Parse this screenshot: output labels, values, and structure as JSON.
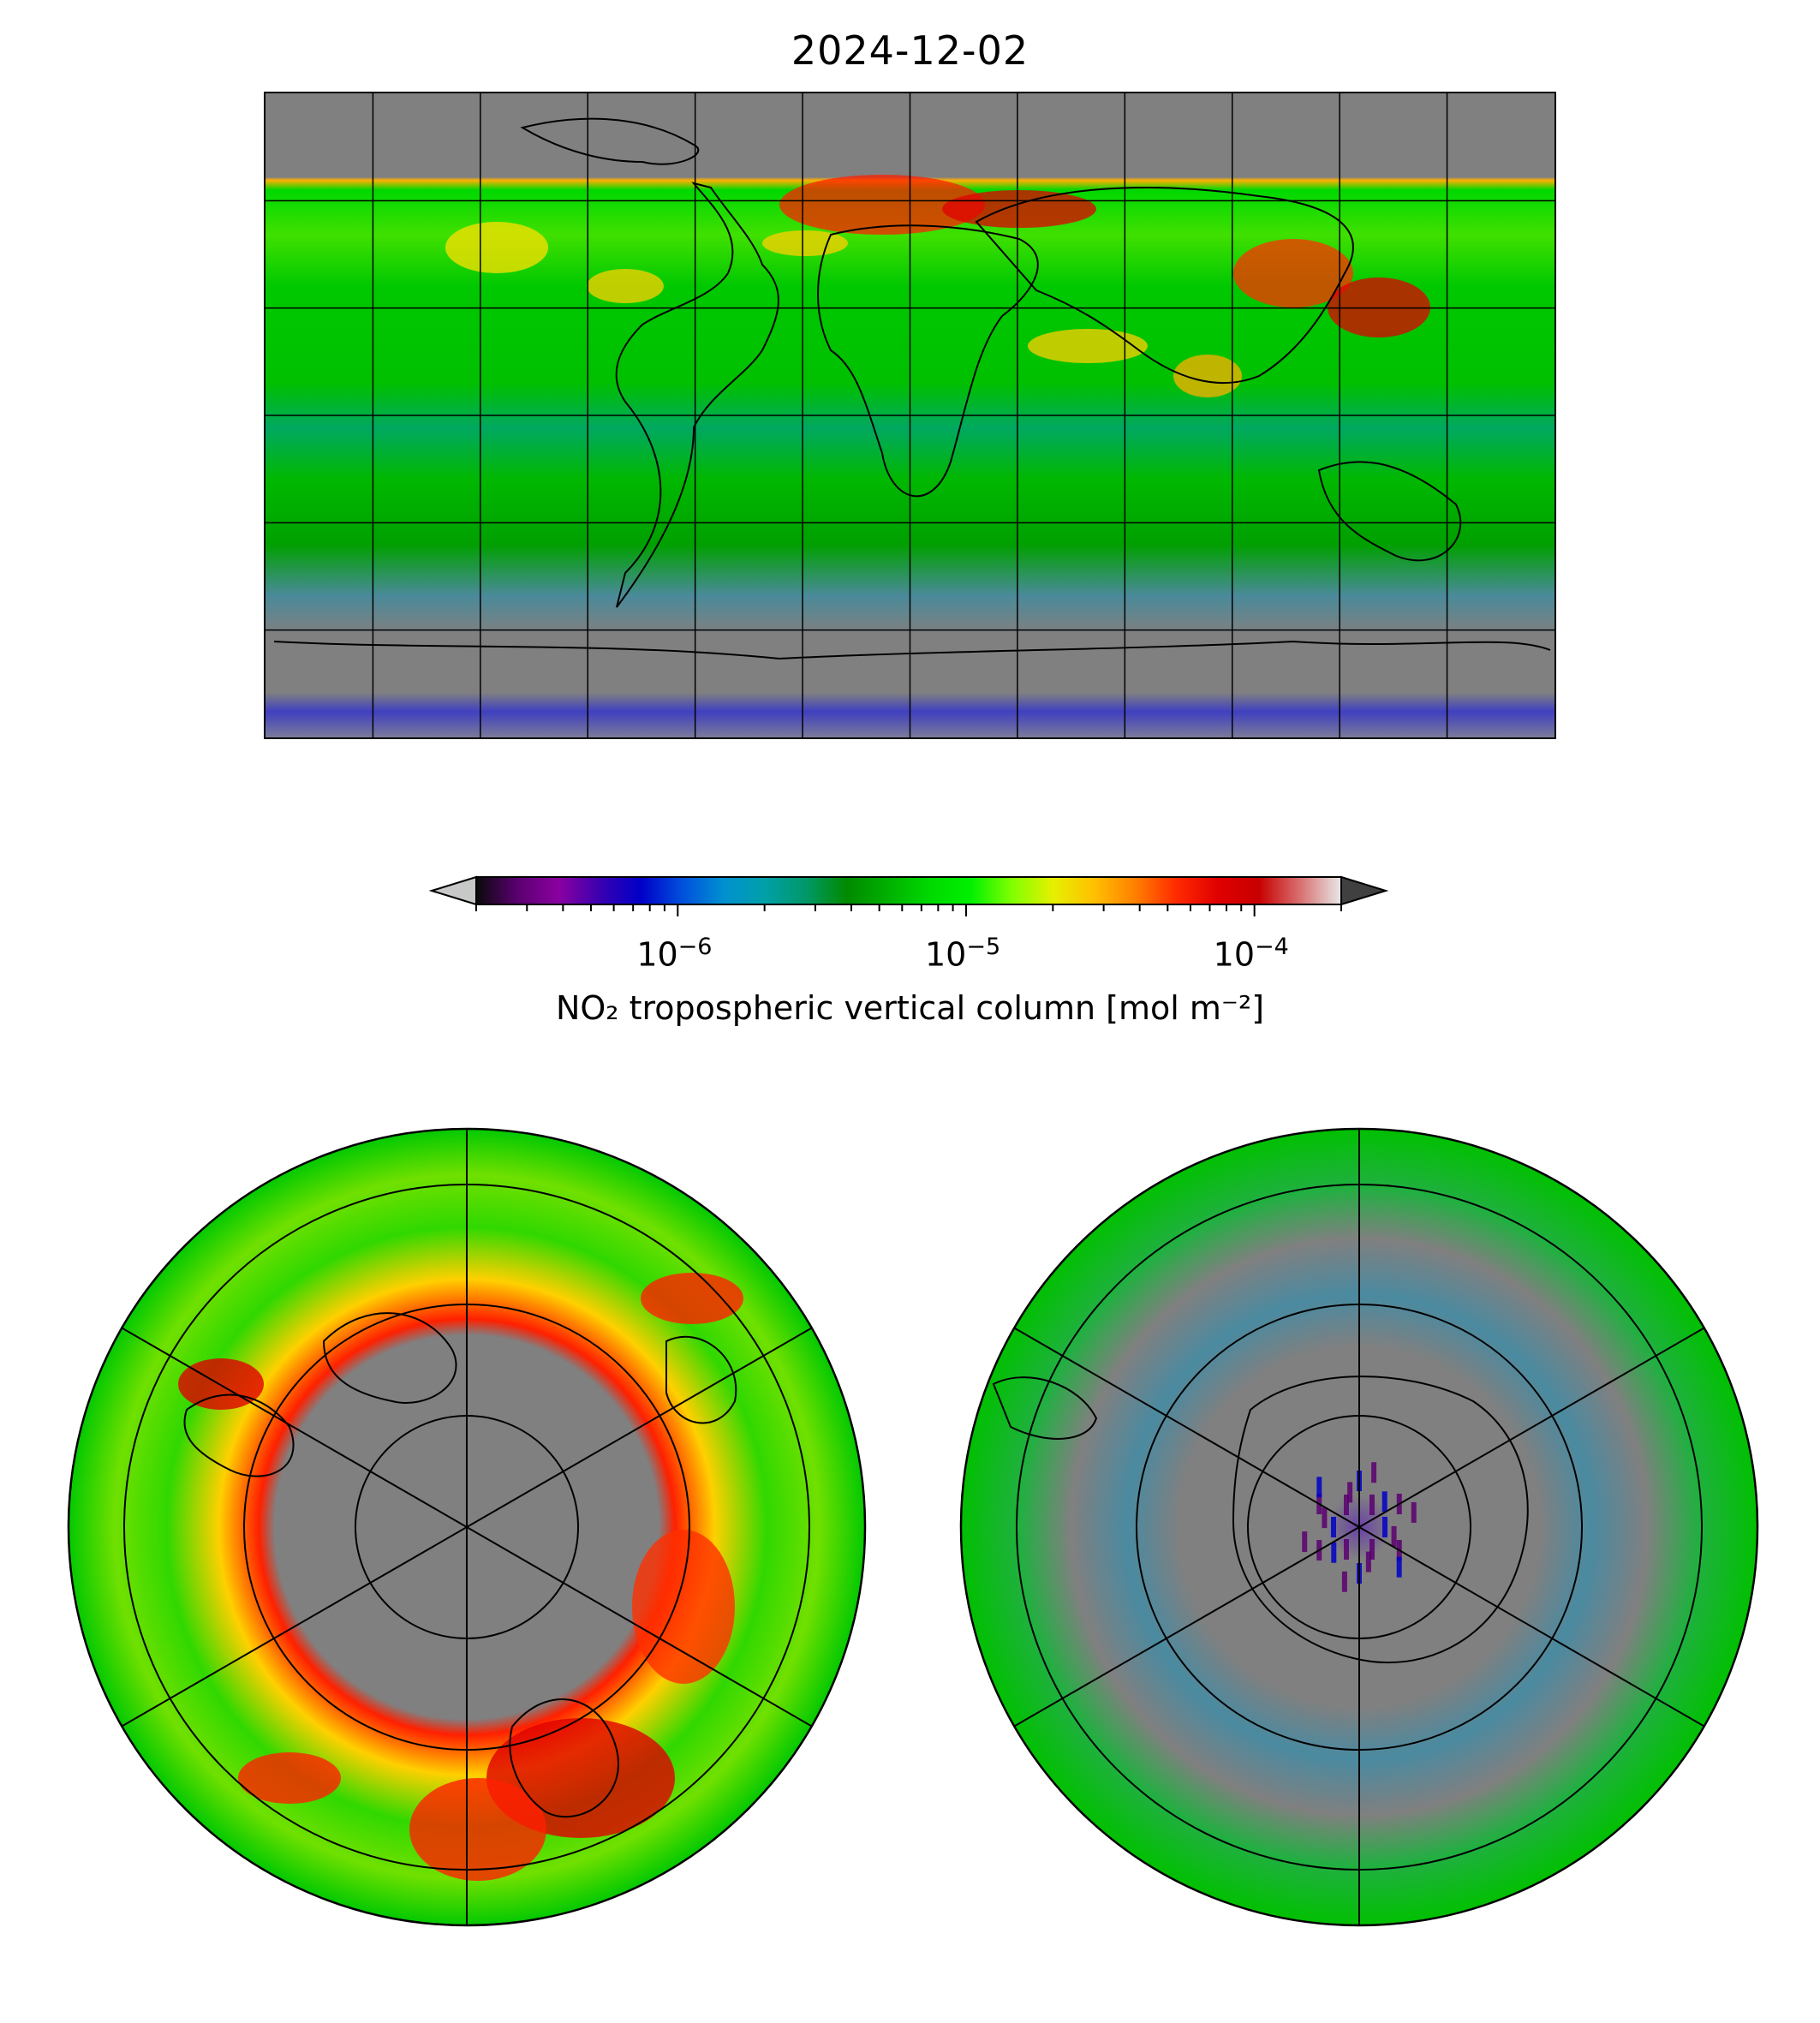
{
  "title": "2024-12-02",
  "colorbar": {
    "label": "NO₂ tropospheric vertical column [mol m⁻²]",
    "scale": "log",
    "range": [
      2e-07,
      0.0002
    ],
    "ticks": [
      {
        "value": 1e-06,
        "base": "10",
        "exp": "−6"
      },
      {
        "value": 1e-05,
        "base": "10",
        "exp": "−5"
      },
      {
        "value": 0.0001,
        "base": "10",
        "exp": "−4"
      }
    ],
    "extend": "both",
    "colors": [
      "#0a0a0a",
      "#5a0070",
      "#8a00a0",
      "#3a00b0",
      "#0000c8",
      "#0050dc",
      "#0090d0",
      "#00a0a8",
      "#009868",
      "#008a00",
      "#00b000",
      "#00d800",
      "#00f000",
      "#80ff00",
      "#e6f000",
      "#ffc000",
      "#ff8000",
      "#ff2a00",
      "#e00000",
      "#c80000",
      "#d87070",
      "#e8e8e8"
    ],
    "under_color": "#c8c8c8",
    "over_color": "#404040"
  },
  "maps": {
    "global": {
      "projection": "equirectangular",
      "gridlines": true,
      "no_data_color": "#808080"
    },
    "north_polar": {
      "projection": "north polar stereographic",
      "gridlines": true
    },
    "south_polar": {
      "projection": "south polar stereographic",
      "gridlines": true
    }
  }
}
